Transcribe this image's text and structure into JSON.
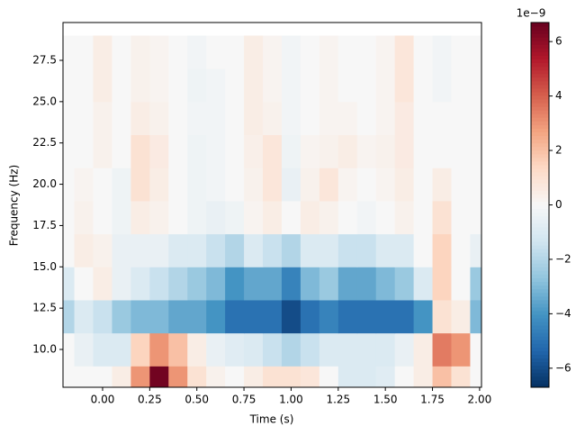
{
  "chart_data": {
    "type": "heatmap",
    "colormap": "RdBu_r",
    "xlabel": "Time (s)",
    "ylabel": "Frequency (Hz)",
    "colorbar_label": "1e−9",
    "xlim": [
      -0.21,
      2.01
    ],
    "ylim": [
      7.71,
      29.79
    ],
    "clim": [
      -6.7,
      6.7
    ],
    "xticks": [
      {
        "value": 0,
        "label": "0.00"
      },
      {
        "value": 0.25,
        "label": "0.25"
      },
      {
        "value": 0.5,
        "label": "0.50"
      },
      {
        "value": 0.75,
        "label": "0.75"
      },
      {
        "value": 1,
        "label": "1.00"
      },
      {
        "value": 1.25,
        "label": "1.25"
      },
      {
        "value": 1.5,
        "label": "1.50"
      },
      {
        "value": 1.75,
        "label": "1.75"
      },
      {
        "value": 2,
        "label": "2.00"
      }
    ],
    "yticks": [
      {
        "value": 10,
        "label": "10.0"
      },
      {
        "value": 12.5,
        "label": "12.5"
      },
      {
        "value": 15,
        "label": "15.0"
      },
      {
        "value": 17.5,
        "label": "17.5"
      },
      {
        "value": 20,
        "label": "20.0"
      },
      {
        "value": 22.5,
        "label": "22.5"
      },
      {
        "value": 25,
        "label": "25.0"
      },
      {
        "value": 27.5,
        "label": "27.5"
      }
    ],
    "cticks": [
      {
        "value": -6,
        "label": "−6"
      },
      {
        "value": -4,
        "label": "−4"
      },
      {
        "value": -2,
        "label": "−2"
      },
      0,
      2,
      4,
      6
    ],
    "x": [
      -0.2,
      -0.1,
      0,
      0.1,
      0.2,
      0.3,
      0.4,
      0.5,
      0.6,
      0.7,
      0.8,
      0.9,
      1,
      1.1,
      1.2,
      1.3,
      1.4,
      1.5,
      1.6,
      1.7,
      1.8,
      1.9,
      2
    ],
    "y": [
      8,
      10,
      12,
      14,
      16,
      18,
      20,
      22,
      24,
      26,
      28
    ],
    "z": [
      [
        0,
        0,
        0,
        0.5,
        3,
        6.5,
        3,
        1,
        0.3,
        0,
        0.5,
        1,
        1,
        0.8,
        0,
        -1,
        -1,
        -0.8,
        0,
        0.5,
        2,
        1,
        0
      ],
      [
        0,
        -0.5,
        -1,
        -1,
        1.5,
        3,
        2,
        0.5,
        -0.5,
        -0.8,
        -1,
        -1.5,
        -2,
        -1.5,
        -1,
        -1,
        -1,
        -1,
        -0.5,
        0.5,
        3.5,
        3,
        0
      ],
      [
        -2,
        -1,
        -1.5,
        -2.5,
        -3,
        -3,
        -3.5,
        -3.5,
        -4,
        -5,
        -5,
        -5,
        -6,
        -5,
        -4.5,
        -5,
        -5,
        -5,
        -5,
        -4,
        1,
        0.5,
        -3
      ],
      [
        -1,
        0,
        0.5,
        -0.5,
        -1,
        -1.5,
        -2,
        -2.5,
        -3,
        -4,
        -3.5,
        -3.5,
        -4.5,
        -3,
        -2.5,
        -3.5,
        -3.5,
        -3,
        -2.5,
        -1,
        1.5,
        0,
        -2.5
      ],
      [
        0,
        0.5,
        0.3,
        -0.5,
        -0.5,
        -0.5,
        -1,
        -1,
        -1.5,
        -2,
        -1,
        -1.5,
        -2,
        -1,
        -1,
        -1.5,
        -1.5,
        -1,
        -1,
        0,
        1.5,
        0,
        -0.5
      ],
      [
        0,
        0.3,
        0,
        -0.3,
        0.5,
        0.3,
        0,
        -0.3,
        -0.5,
        -0.3,
        0.2,
        0.5,
        0,
        0.5,
        0.3,
        0,
        -0.2,
        0,
        0.3,
        0,
        1,
        0,
        0
      ],
      [
        0,
        0.2,
        0,
        -0.3,
        1,
        0.5,
        0,
        -0.3,
        -0.2,
        0,
        0.3,
        0.8,
        -0.5,
        0.3,
        0.8,
        0.2,
        0,
        0.2,
        0.5,
        0,
        0.5,
        0,
        0
      ],
      [
        0,
        0,
        0.3,
        0,
        1,
        0.6,
        0,
        -0.3,
        -0.2,
        0,
        0.4,
        0.8,
        -0.3,
        0.2,
        0.3,
        0.5,
        0.2,
        0.3,
        0.6,
        0,
        0,
        0,
        0
      ],
      [
        0,
        0,
        0.3,
        0,
        0.5,
        0.3,
        0,
        -0.2,
        -0.2,
        0,
        0.5,
        0.3,
        -0.2,
        0,
        0.2,
        0.2,
        0,
        0.2,
        0.6,
        0,
        0,
        0,
        0
      ],
      [
        0,
        0,
        0.5,
        0,
        0.3,
        0.2,
        0,
        -0.3,
        -0.2,
        0,
        0.5,
        0.2,
        -0.2,
        0,
        0.2,
        0,
        0,
        0.2,
        0.8,
        0,
        -0.2,
        0,
        0
      ],
      [
        0,
        0,
        0.5,
        0,
        0.3,
        0.2,
        0,
        -0.2,
        0,
        0,
        0.5,
        0.2,
        -0.2,
        0,
        0.2,
        0,
        0,
        0.2,
        0.8,
        0,
        -0.2,
        0,
        0
      ]
    ]
  }
}
